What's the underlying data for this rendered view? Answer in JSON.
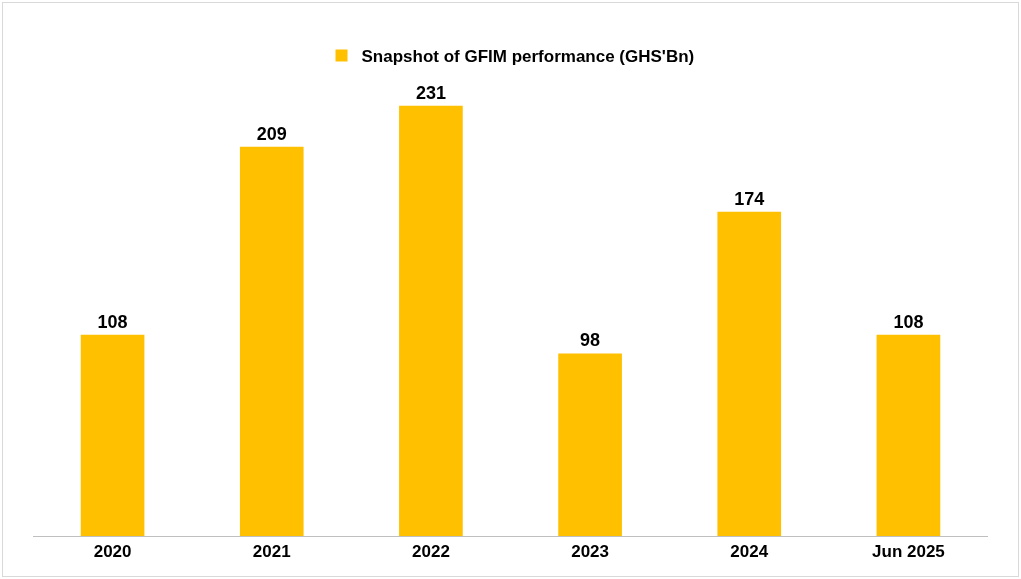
{
  "chart_data": {
    "type": "bar",
    "categories": [
      "2020",
      "2021",
      "2022",
      "2023",
      "2024",
      "Jun 2025"
    ],
    "series": [
      {
        "name": "Snapshot of GFIM performance (GHS'Bn)",
        "color": "#ffc000",
        "values": [
          108,
          209,
          231,
          98,
          174,
          108
        ]
      }
    ],
    "data_labels": true,
    "legend": "top",
    "grid": false
  }
}
